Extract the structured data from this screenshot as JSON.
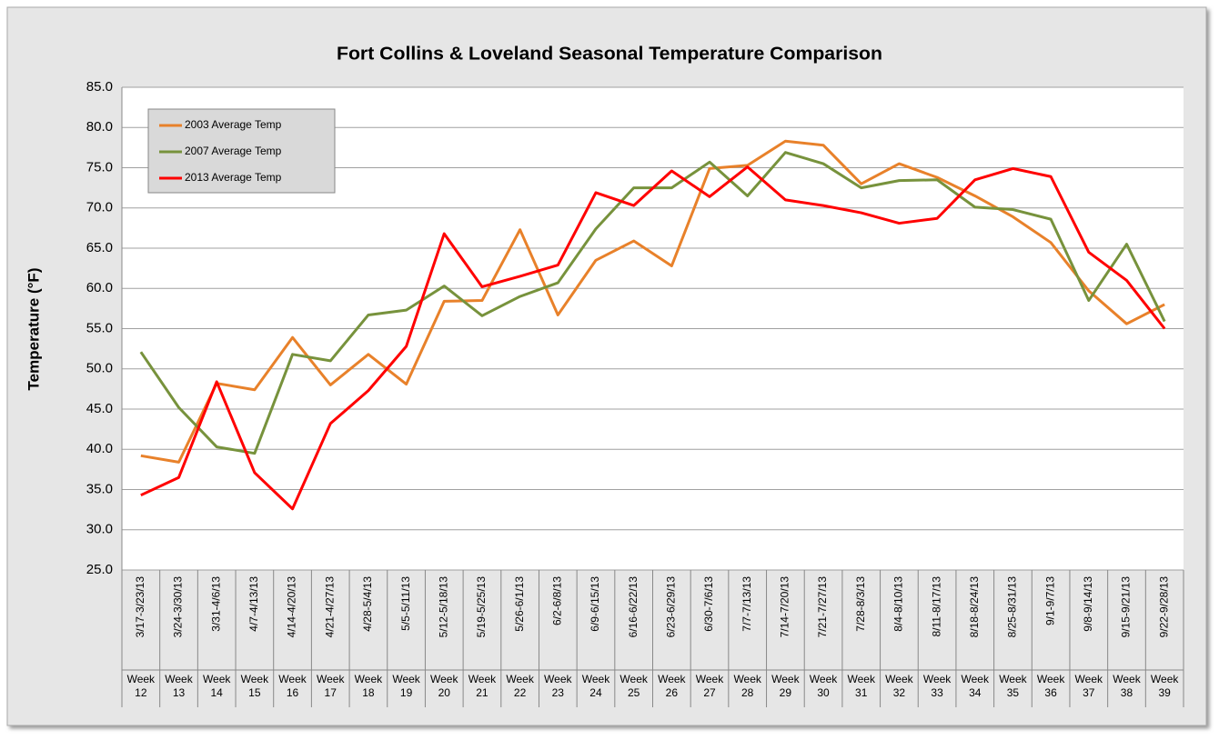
{
  "chart_data": {
    "type": "line",
    "title": "Fort Collins & Loveland  Seasonal Temperature Comparison",
    "y_label": "Temperature (°F)",
    "categories": [
      "3/17-3/23/13",
      "3/24-3/30/13",
      "3/31-4/6/13",
      "4/7-4/13/13",
      "4/14-4/20/13",
      "4/21-4/27/13",
      "4/28-5/4/13",
      "5/5-5/11/13",
      "5/12-5/18/13",
      "5/19-5/25/13",
      "5/26-6/1/13",
      "6/2-6/8/13",
      "6/9-6/15/13",
      "6/16-6/22/13",
      "6/23-6/29/13",
      "6/30-7/6/13",
      "7/7-7/13/13",
      "7/14-7/20/13",
      "7/21-7/27/13",
      "7/28-8/3/13",
      "8/4-8/10/13",
      "8/11-8/17/13",
      "8/18-8/24/13",
      "8/25-8/31/13",
      "9/1-9/7/13",
      "9/8-9/14/13",
      "9/15-9/21/13",
      "9/22-9/28/13"
    ],
    "weeks": [
      "Week 12",
      "Week 13",
      "Week 14",
      "Week 15",
      "Week 16",
      "Week 17",
      "Week 18",
      "Week 19",
      "Week 20",
      "Week 21",
      "Week 22",
      "Week 23",
      "Week 24",
      "Week 25",
      "Week 26",
      "Week 27",
      "Week 28",
      "Week 29",
      "Week 30",
      "Week 31",
      "Week 32",
      "Week 33",
      "Week 34",
      "Week 35",
      "Week 36",
      "Week 37",
      "Week 38",
      "Week 39"
    ],
    "series": [
      {
        "name": "2003 Average Temp",
        "color": "#e8812a",
        "values": [
          39.2,
          38.4,
          48.2,
          47.4,
          53.9,
          48.0,
          51.8,
          48.1,
          58.4,
          58.5,
          67.3,
          56.7,
          63.5,
          65.9,
          62.8,
          74.9,
          75.3,
          78.3,
          77.8,
          73.0,
          75.5,
          73.8,
          71.5,
          68.9,
          65.7,
          59.7,
          55.6,
          58.0
        ]
      },
      {
        "name": "2007 Average Temp",
        "color": "#77923c",
        "values": [
          52.1,
          45.2,
          40.3,
          39.5,
          51.8,
          51.0,
          56.7,
          57.3,
          60.3,
          56.6,
          59.0,
          60.7,
          67.4,
          72.5,
          72.5,
          75.7,
          71.5,
          76.9,
          75.5,
          72.5,
          73.4,
          73.5,
          70.1,
          69.8,
          68.6,
          58.5,
          65.5,
          55.9
        ]
      },
      {
        "name": "2013 Average Temp",
        "color": "#ff0000",
        "values": [
          34.3,
          36.5,
          48.4,
          37.1,
          32.6,
          43.2,
          47.3,
          52.8,
          66.8,
          60.2,
          61.5,
          62.9,
          71.9,
          70.3,
          74.6,
          71.4,
          75.1,
          71.0,
          70.3,
          69.4,
          68.1,
          68.7,
          73.5,
          74.9,
          73.9,
          64.5,
          61.0,
          55.0
        ]
      }
    ],
    "ylim": [
      25,
      85
    ],
    "yticks": [
      {
        "value": 25,
        "label": "25.0"
      },
      {
        "value": 30,
        "label": "30.0"
      },
      {
        "value": 35,
        "label": "35.0"
      },
      {
        "value": 40,
        "label": "40.0"
      },
      {
        "value": 45,
        "label": "45.0"
      },
      {
        "value": 50,
        "label": "50.0"
      },
      {
        "value": 55,
        "label": "55.0"
      },
      {
        "value": 60,
        "label": "60.0"
      },
      {
        "value": 65,
        "label": "65.0"
      },
      {
        "value": 70,
        "label": "70.0"
      },
      {
        "value": 75,
        "label": "75.0"
      },
      {
        "value": 80,
        "label": "80.0"
      },
      {
        "value": 85,
        "label": "85.0"
      }
    ],
    "grid": true,
    "legend": "top-left"
  }
}
